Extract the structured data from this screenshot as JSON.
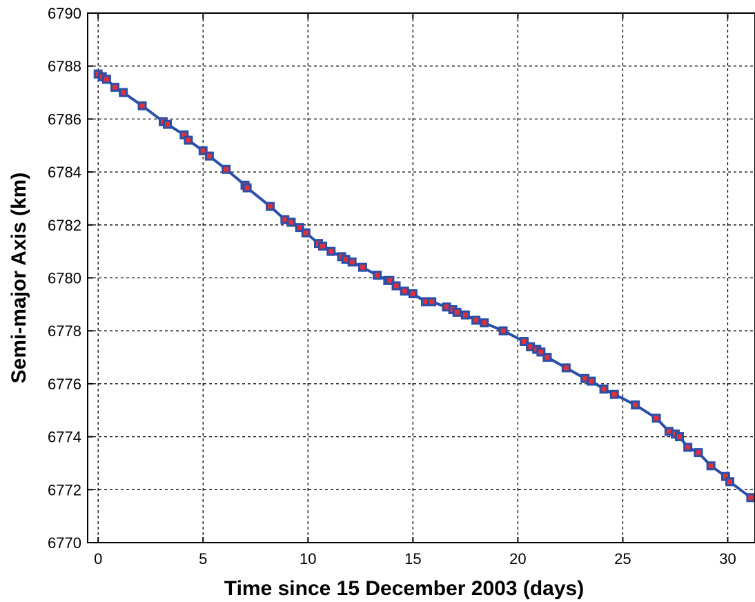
{
  "chart_data": {
    "type": "line",
    "title": "",
    "xlabel": "Time since 15 December 2003 (days)",
    "ylabel": "Semi-major Axis (km)",
    "xlim": [
      -0.5,
      31.3
    ],
    "ylim": [
      6770,
      6790
    ],
    "xticks": [
      0,
      5,
      10,
      15,
      20,
      25,
      30
    ],
    "yticks": [
      6770,
      6772,
      6774,
      6776,
      6778,
      6780,
      6782,
      6784,
      6786,
      6788,
      6790
    ],
    "grid": true,
    "legend": "none",
    "series": [
      {
        "line_color": "#2a4fa8",
        "marker": "square",
        "marker_edge_color": "#2a4fa8",
        "marker_face_color": "#e0303a",
        "x": [
          0.0,
          0.2,
          0.4,
          0.8,
          1.2,
          2.1,
          3.1,
          3.3,
          4.1,
          4.3,
          5.0,
          5.3,
          6.1,
          7.0,
          7.1,
          8.2,
          8.9,
          9.2,
          9.6,
          9.9,
          10.5,
          10.7,
          11.1,
          11.6,
          11.8,
          12.1,
          12.6,
          13.3,
          13.8,
          13.9,
          14.2,
          14.6,
          15.0,
          15.6,
          15.9,
          16.6,
          16.9,
          17.1,
          17.5,
          18.0,
          18.4,
          19.3,
          20.3,
          20.6,
          20.9,
          21.1,
          21.4,
          22.3,
          23.2,
          23.5,
          24.1,
          24.6,
          25.6,
          26.6,
          27.2,
          27.5,
          27.7,
          28.1,
          28.6,
          29.2,
          29.9,
          30.1,
          31.1
        ],
        "y": [
          6787.7,
          6787.6,
          6787.5,
          6787.2,
          6787.0,
          6786.5,
          6785.9,
          6785.8,
          6785.4,
          6785.2,
          6784.8,
          6784.6,
          6784.1,
          6783.5,
          6783.4,
          6782.7,
          6782.2,
          6782.1,
          6781.9,
          6781.7,
          6781.3,
          6781.2,
          6781.0,
          6780.8,
          6780.7,
          6780.6,
          6780.4,
          6780.1,
          6779.9,
          6779.9,
          6779.7,
          6779.5,
          6779.4,
          6779.1,
          6779.1,
          6778.9,
          6778.8,
          6778.7,
          6778.6,
          6778.4,
          6778.3,
          6778.0,
          6777.6,
          6777.4,
          6777.3,
          6777.2,
          6777.0,
          6776.6,
          6776.2,
          6776.1,
          6775.8,
          6775.6,
          6775.2,
          6774.7,
          6774.2,
          6774.1,
          6774.0,
          6773.6,
          6773.4,
          6772.9,
          6772.5,
          6772.3,
          6771.7
        ]
      }
    ]
  }
}
